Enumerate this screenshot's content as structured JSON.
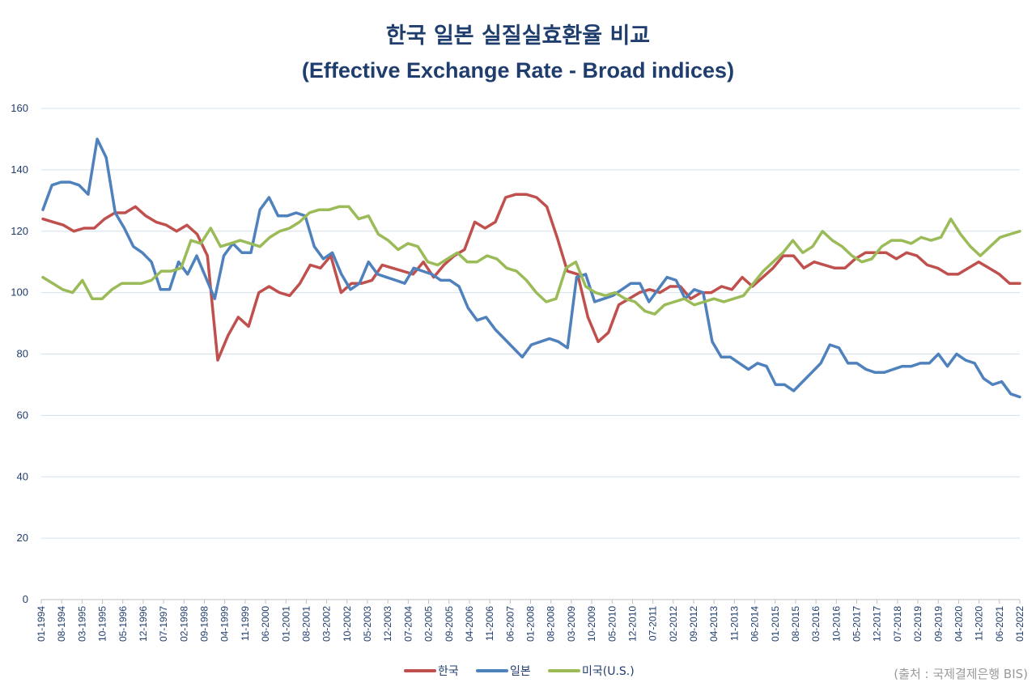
{
  "title": "한국 일본 실질실효환율 비교",
  "subtitle": "(Effective Exchange Rate - Broad indices)",
  "source": "(출처 : 국제결제은행  BIS)",
  "chart_data": {
    "type": "line",
    "ylim": [
      0,
      160
    ],
    "yticks": [
      0,
      20,
      40,
      60,
      80,
      100,
      120,
      140,
      160
    ],
    "grid": true,
    "legend_position": "bottom",
    "x_tick_labels": [
      "01-1994",
      "08-1994",
      "03-1995",
      "10-1995",
      "05-1996",
      "12-1996",
      "07-1997",
      "02-1998",
      "09-1998",
      "04-1999",
      "11-1999",
      "06-2000",
      "01-2001",
      "08-2001",
      "03-2002",
      "10-2002",
      "05-2003",
      "12-2003",
      "07-2004",
      "02-2005",
      "09-2005",
      "04-2006",
      "11-2006",
      "06-2007",
      "01-2008",
      "08-2008",
      "03-2009",
      "10-2009",
      "05-2010",
      "12-2010",
      "07-2011",
      "02-2012",
      "09-2012",
      "04-2013",
      "11-2013",
      "06-2014",
      "01-2015",
      "08-2015",
      "03-2016",
      "10-2016",
      "05-2017",
      "12-2017",
      "07-2018",
      "02-2019",
      "09-2019",
      "04-2020",
      "11-2020",
      "06-2021",
      "01-2022"
    ],
    "series": [
      {
        "name": "한국",
        "color": "#c0504d",
        "values": [
          124,
          123,
          122,
          120,
          121,
          121,
          124,
          126,
          126,
          128,
          125,
          123,
          122,
          120,
          122,
          119,
          112,
          78,
          86,
          92,
          89,
          100,
          102,
          100,
          99,
          103,
          109,
          108,
          112,
          100,
          103,
          103,
          104,
          109,
          108,
          107,
          106,
          110,
          105,
          109,
          112,
          114,
          123,
          121,
          123,
          131,
          132,
          132,
          131,
          128,
          118,
          107,
          106,
          92,
          84,
          87,
          96,
          98,
          100,
          101,
          100,
          102,
          102,
          98,
          100,
          100,
          102,
          101,
          105,
          102,
          105,
          108,
          112,
          112,
          108,
          110,
          109,
          108,
          108,
          111,
          113,
          113,
          113,
          111,
          113,
          112,
          109,
          108,
          106,
          106,
          108,
          110,
          108,
          106,
          103,
          103
        ]
      },
      {
        "name": "일본",
        "color": "#4f81bd",
        "values": [
          127,
          135,
          136,
          136,
          135,
          132,
          150,
          144,
          126,
          121,
          115,
          113,
          110,
          101,
          101,
          110,
          106,
          112,
          105,
          98,
          112,
          116,
          113,
          113,
          127,
          131,
          125,
          125,
          126,
          125,
          115,
          111,
          113,
          106,
          101,
          103,
          110,
          106,
          105,
          104,
          103,
          108,
          107,
          106,
          104,
          104,
          102,
          95,
          91,
          92,
          88,
          85,
          82,
          79,
          83,
          84,
          85,
          84,
          82,
          105,
          106,
          97,
          98,
          99,
          101,
          103,
          103,
          97,
          101,
          105,
          104,
          98,
          101,
          100,
          84,
          79,
          79,
          77,
          75,
          77,
          76,
          70,
          70,
          68,
          71,
          74,
          77,
          83,
          82,
          77,
          77,
          75,
          74,
          74,
          75,
          76,
          76,
          77,
          77,
          80,
          76,
          80,
          78,
          77,
          72,
          70,
          71,
          67,
          66
        ]
      },
      {
        "name": "미국(U.S.)",
        "color": "#9bbb59",
        "values": [
          105,
          103,
          101,
          100,
          104,
          98,
          98,
          101,
          103,
          103,
          103,
          104,
          107,
          107,
          108,
          117,
          116,
          121,
          115,
          116,
          117,
          116,
          115,
          118,
          120,
          121,
          123,
          126,
          127,
          127,
          128,
          128,
          124,
          125,
          119,
          117,
          114,
          116,
          115,
          110,
          109,
          111,
          113,
          110,
          110,
          112,
          111,
          108,
          107,
          104,
          100,
          97,
          98,
          108,
          110,
          102,
          100,
          99,
          100,
          98,
          97,
          94,
          93,
          96,
          97,
          98,
          96,
          97,
          98,
          97,
          98,
          99,
          103,
          107,
          110,
          113,
          117,
          113,
          115,
          120,
          117,
          115,
          112,
          110,
          111,
          115,
          117,
          117,
          116,
          118,
          117,
          118,
          124,
          119,
          115,
          112,
          115,
          118,
          119,
          120
        ]
      }
    ]
  }
}
